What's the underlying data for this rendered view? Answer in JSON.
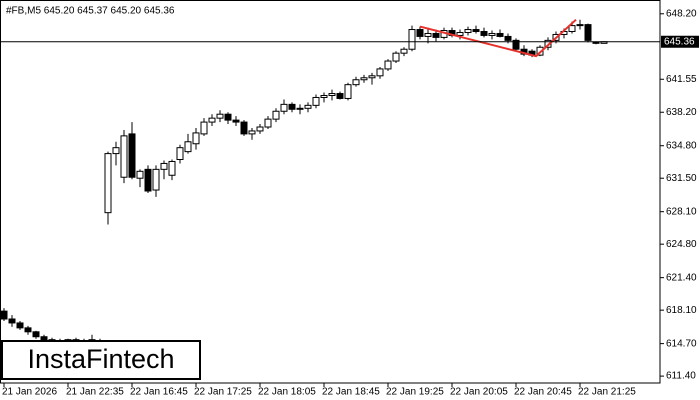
{
  "chart_data": {
    "type": "candlestick",
    "title": "#FB,M5  645.20 645.37 645.20 645.36",
    "logo": "InstaFintech",
    "categories": [
      "21 Jan 2026",
      null,
      null,
      null,
      null,
      null,
      null,
      null,
      "21 Jan 22:35",
      null,
      null,
      null,
      null,
      null,
      null,
      null,
      "22 Jan 16:45",
      null,
      null,
      null,
      null,
      null,
      null,
      null,
      "22 Jan 17:25",
      null,
      null,
      null,
      null,
      null,
      null,
      null,
      "22 Jan 18:05",
      null,
      null,
      null,
      null,
      null,
      null,
      null,
      "22 Jan 18:45",
      null,
      null,
      null,
      null,
      null,
      null,
      null,
      "22 Jan 19:25",
      null,
      null,
      null,
      null,
      null,
      null,
      null,
      "22 Jan 20:05",
      null,
      null,
      null,
      null,
      null,
      null,
      null,
      "22 Jan 20:45",
      null,
      null,
      null,
      null,
      null,
      null,
      null,
      "22 Jan 21:25",
      null,
      null,
      null
    ],
    "open": [
      618.0,
      617.2,
      616.8,
      616.3,
      615.9,
      615.4,
      615.1,
      615.0,
      614.9,
      615.1,
      615.0,
      614.9,
      614.9,
      628.0,
      634.0,
      631.6,
      636.0,
      631.5,
      632.4,
      630.3,
      632.4,
      631.8,
      633.4,
      634.2,
      635.0,
      636.0,
      637.2,
      637.6,
      638.0,
      637.4,
      637.2,
      636.0,
      636.3,
      636.7,
      637.5,
      638.3,
      639.0,
      638.5,
      638.6,
      638.9,
      639.7,
      639.9,
      640.1,
      639.6,
      641.0,
      641.5,
      641.7,
      641.9,
      642.6,
      643.4,
      644.2,
      644.6,
      646.6,
      645.9,
      646.2,
      645.8,
      646.5,
      646.0,
      646.3,
      646.6,
      646.4,
      646.0,
      646.2,
      645.9,
      645.5,
      644.6,
      644.4,
      644.0,
      644.8,
      645.5,
      646.1,
      646.4,
      647.0,
      647.1,
      645.3,
      645.2
    ],
    "high": [
      618.3,
      617.6,
      617.0,
      616.5,
      616.0,
      615.6,
      615.3,
      615.2,
      615.2,
      615.3,
      615.2,
      615.6,
      615.2,
      634.2,
      635.2,
      636.4,
      637.2,
      632.4,
      632.8,
      632.8,
      633.3,
      633.4,
      634.9,
      636.0,
      636.6,
      637.6,
      638.0,
      638.4,
      638.2,
      637.8,
      637.4,
      636.6,
      637.0,
      637.8,
      638.6,
      639.5,
      639.2,
      639.0,
      639.2,
      640.0,
      640.2,
      640.5,
      640.3,
      641.2,
      641.8,
      642.0,
      642.2,
      642.8,
      643.6,
      644.4,
      644.8,
      647.0,
      646.9,
      646.8,
      646.6,
      646.8,
      646.8,
      646.6,
      646.9,
      647.0,
      646.8,
      646.5,
      646.6,
      646.2,
      645.7,
      645.0,
      644.6,
      645.0,
      645.8,
      646.4,
      646.7,
      647.4,
      647.6,
      647.2,
      645.4,
      645.37
    ],
    "low": [
      617.0,
      616.4,
      616.1,
      615.6,
      615.2,
      614.9,
      614.8,
      614.7,
      614.7,
      614.8,
      614.7,
      614.8,
      614.8,
      626.8,
      632.8,
      631.0,
      631.4,
      630.6,
      630.0,
      629.6,
      631.4,
      631.3,
      633.0,
      634.0,
      634.4,
      635.8,
      636.8,
      637.2,
      637.0,
      636.8,
      635.8,
      635.4,
      636.0,
      636.5,
      637.2,
      638.0,
      638.2,
      638.0,
      638.2,
      638.6,
      639.2,
      639.4,
      639.5,
      639.4,
      640.8,
      641.2,
      641.0,
      641.6,
      642.4,
      643.2,
      643.9,
      644.4,
      645.6,
      645.2,
      645.4,
      645.6,
      645.8,
      645.6,
      646.0,
      646.2,
      645.8,
      645.6,
      645.8,
      645.2,
      644.4,
      643.9,
      643.8,
      643.9,
      644.5,
      645.2,
      645.7,
      646.2,
      646.6,
      645.3,
      645.1,
      645.2
    ],
    "close": [
      617.2,
      616.8,
      616.3,
      615.9,
      615.4,
      615.1,
      615.0,
      614.9,
      615.1,
      615.0,
      614.9,
      615.1,
      615.0,
      634.0,
      634.6,
      635.8,
      631.6,
      632.2,
      630.2,
      632.4,
      633.0,
      633.2,
      634.6,
      635.2,
      636.1,
      637.2,
      637.6,
      638.0,
      637.4,
      637.2,
      636.0,
      636.3,
      636.7,
      637.5,
      638.3,
      639.0,
      638.5,
      638.6,
      638.9,
      639.7,
      639.9,
      640.1,
      639.6,
      641.0,
      641.5,
      641.7,
      641.9,
      642.6,
      643.4,
      644.2,
      644.6,
      646.6,
      645.9,
      646.2,
      645.8,
      646.5,
      646.0,
      646.3,
      646.6,
      646.4,
      646.0,
      646.2,
      645.9,
      645.5,
      644.6,
      644.1,
      644.0,
      644.8,
      645.5,
      646.1,
      646.4,
      647.0,
      647.1,
      645.5,
      645.3,
      645.36
    ],
    "up_color": "#ffffff",
    "down_color": "#000000",
    "current_price": 645.36,
    "pattern": {
      "color": "#e8302a",
      "x": [
        52,
        66.5,
        71.5
      ],
      "y": [
        646.9,
        643.9,
        647.6
      ]
    },
    "ylim": [
      610.7,
      649.6
    ],
    "yticks": [
      {
        "value": 648.2,
        "label": "648.20"
      },
      641.55,
      {
        "value": 638.2,
        "label": "638.20"
      },
      {
        "value": 634.8,
        "label": "634.80"
      },
      {
        "value": 631.5,
        "label": "631.50"
      },
      {
        "value": 628.1,
        "label": "628.10"
      },
      {
        "value": 624.8,
        "label": "624.80"
      },
      {
        "value": 621.4,
        "label": "621.40"
      },
      {
        "value": 618.1,
        "label": "618.10"
      },
      {
        "value": 614.7,
        "label": "614.70"
      },
      {
        "value": 611.4,
        "label": "611.40"
      }
    ]
  }
}
